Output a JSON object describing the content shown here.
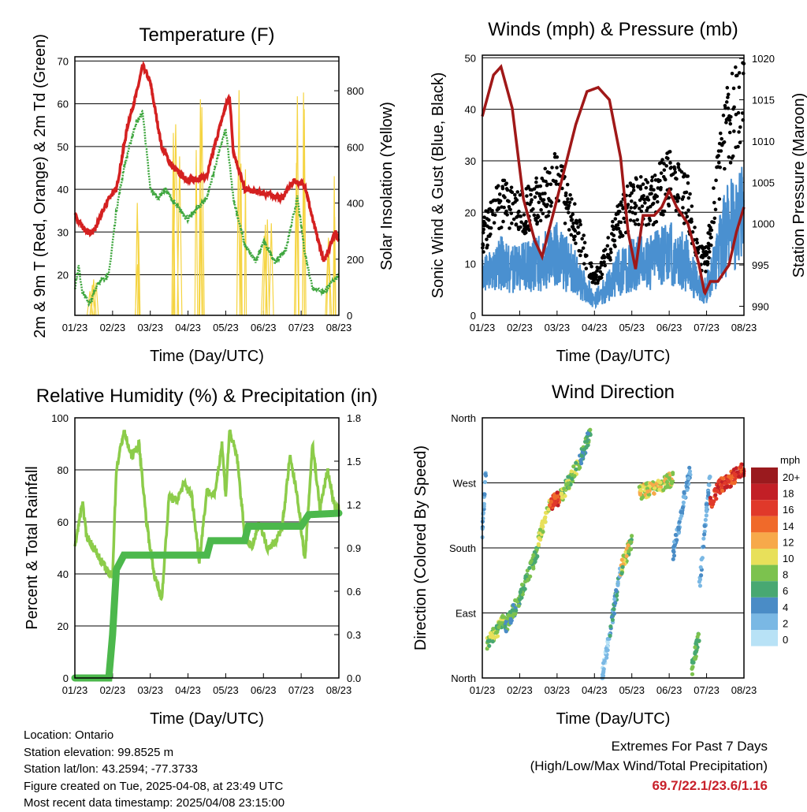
{
  "footer": {
    "location": "Location: Ontario",
    "elevation": "Station elevation: 99.8525 m",
    "latlon": "Station lat/lon: 43.2594; -77.3733",
    "created": "Figure created on Tue, 2025-04-08, at 23:49 UTC",
    "recent": "Most recent data timestamp: 2025/04/08 23:15:00"
  },
  "extremes": {
    "title": "Extremes For Past 7 Days",
    "subtitle": "(High/Low/Max Wind/Total Precipitation)",
    "values": "69.7/22.1/23.6/1.16",
    "color": "#c8202a"
  },
  "chart_data": [
    {
      "type": "line",
      "title": "Temperature (F)",
      "xlabel": "Time (Day/UTC)",
      "ylabel": "2m & 9m T (Red, Orange) & 2m Td (Green)",
      "y2label": "Solar Insolation (Yellow)",
      "xticks": [
        "01/23",
        "02/23",
        "03/23",
        "04/23",
        "05/23",
        "06/23",
        "07/23",
        "08/23"
      ],
      "xlim": [
        0,
        7
      ],
      "ylim": [
        10.5,
        71
      ],
      "yticks": [
        20,
        30,
        40,
        50,
        60,
        70
      ],
      "y2lim": [
        0,
        921
      ],
      "y2ticks": [
        0,
        200,
        400,
        600,
        800
      ],
      "series": [
        {
          "name": "2m T",
          "color": "#d42020",
          "points": [
            [
              0,
              34
            ],
            [
              0.3,
              30
            ],
            [
              0.5,
              30
            ],
            [
              0.9,
              38
            ],
            [
              1.1,
              40
            ],
            [
              1.4,
              55
            ],
            [
              1.65,
              63
            ],
            [
              1.8,
              69
            ],
            [
              2.0,
              65
            ],
            [
              2.3,
              50
            ],
            [
              2.6,
              45
            ],
            [
              3.0,
              42
            ],
            [
              3.5,
              43
            ],
            [
              3.7,
              50
            ],
            [
              3.95,
              58
            ],
            [
              4.1,
              62
            ],
            [
              4.2,
              49
            ],
            [
              4.5,
              40
            ],
            [
              5.0,
              39
            ],
            [
              5.5,
              38
            ],
            [
              5.8,
              42
            ],
            [
              6.1,
              41
            ],
            [
              6.3,
              33
            ],
            [
              6.6,
              23
            ],
            [
              6.9,
              30
            ],
            [
              7.0,
              28
            ]
          ]
        },
        {
          "name": "2m Td",
          "color": "#3ea63e",
          "points": [
            [
              0,
              17
            ],
            [
              0.1,
              22
            ],
            [
              0.2,
              16
            ],
            [
              0.4,
              13
            ],
            [
              0.6,
              18
            ],
            [
              0.9,
              20
            ],
            [
              1.1,
              35
            ],
            [
              1.3,
              45
            ],
            [
              1.6,
              55
            ],
            [
              1.8,
              58
            ],
            [
              2.0,
              40
            ],
            [
              2.2,
              38
            ],
            [
              2.4,
              40
            ],
            [
              2.7,
              36
            ],
            [
              3.0,
              33
            ],
            [
              3.5,
              38
            ],
            [
              3.8,
              48
            ],
            [
              4.0,
              54
            ],
            [
              4.2,
              38
            ],
            [
              4.5,
              27
            ],
            [
              4.8,
              23
            ],
            [
              5.0,
              28
            ],
            [
              5.3,
              23
            ],
            [
              5.6,
              26
            ],
            [
              5.9,
              38
            ],
            [
              6.1,
              25
            ],
            [
              6.3,
              17
            ],
            [
              6.6,
              16
            ],
            [
              7,
              20
            ]
          ]
        },
        {
          "name": "Solar Insolation",
          "color": "#f5d442",
          "axis": "right",
          "peaks": [
            [
              0.55,
              150
            ],
            [
              1.6,
              420
            ],
            [
              2.65,
              720
            ],
            [
              3.35,
              800
            ],
            [
              4.4,
              840
            ],
            [
              5.1,
              420
            ],
            [
              5.95,
              890
            ],
            [
              6.85,
              520
            ]
          ]
        }
      ]
    },
    {
      "type": "line",
      "title": "Winds (mph) & Pressure (mb)",
      "xlabel": "Time (Day/UTC)",
      "ylabel": "Sonic Wind & Gust (Blue, Black)",
      "y2label": "Station Pressure (Maroon)",
      "xticks": [
        "01/23",
        "02/23",
        "03/23",
        "04/23",
        "05/23",
        "06/23",
        "07/23",
        "08/23"
      ],
      "xlim": [
        0,
        7
      ],
      "ylim": [
        0,
        50.5
      ],
      "yticks": [
        0,
        10,
        20,
        30,
        40,
        50
      ],
      "y2lim": [
        988.9,
        1020.4
      ],
      "y2ticks": [
        990,
        995,
        1000,
        1005,
        1010,
        1015,
        1020
      ],
      "series": [
        {
          "name": "Sonic Wind",
          "color": "#4a90d0",
          "points": [
            [
              0,
              7
            ],
            [
              0.5,
              10
            ],
            [
              1,
              9
            ],
            [
              1.5,
              10
            ],
            [
              2,
              12
            ],
            [
              2.5,
              8
            ],
            [
              3,
              3
            ],
            [
              3.3,
              5
            ],
            [
              3.6,
              8
            ],
            [
              4,
              10
            ],
            [
              4.5,
              10
            ],
            [
              5,
              12
            ],
            [
              5.5,
              10
            ],
            [
              5.8,
              5
            ],
            [
              6.0,
              5
            ],
            [
              6.2,
              10
            ],
            [
              6.5,
              16
            ],
            [
              7,
              20
            ]
          ]
        },
        {
          "name": "Gust",
          "color": "#000000",
          "factor": 1.7
        },
        {
          "name": "Station Pressure",
          "color": "#a01818",
          "axis": "right",
          "points": [
            [
              0,
              1013
            ],
            [
              0.3,
              1018
            ],
            [
              0.5,
              1019
            ],
            [
              0.8,
              1014
            ],
            [
              1.1,
              1003
            ],
            [
              1.4,
              998
            ],
            [
              1.6,
              996
            ],
            [
              2.0,
              1003
            ],
            [
              2.5,
              1012
            ],
            [
              2.8,
              1016
            ],
            [
              3.1,
              1016.5
            ],
            [
              3.4,
              1015
            ],
            [
              3.7,
              1008
            ],
            [
              3.9,
              999
            ],
            [
              4.1,
              994.5
            ],
            [
              4.3,
              1001
            ],
            [
              4.6,
              1001
            ],
            [
              4.8,
              1002
            ],
            [
              5.0,
              1004
            ],
            [
              5.2,
              1002
            ],
            [
              5.5,
              1000
            ],
            [
              5.8,
              995
            ],
            [
              5.95,
              991.5
            ],
            [
              6.1,
              993
            ],
            [
              6.3,
              993
            ],
            [
              6.6,
              995
            ],
            [
              6.8,
              999
            ],
            [
              7,
              1002
            ]
          ]
        }
      ]
    },
    {
      "type": "line",
      "title": "Relative Humidity (%) & Precipitation (in)",
      "xlabel": "Time (Day/UTC)",
      "ylabel": "Percent & Total Rainfall",
      "xticks": [
        "01/23",
        "02/23",
        "03/23",
        "04/23",
        "05/23",
        "06/23",
        "07/23",
        "08/23"
      ],
      "xlim": [
        0,
        7
      ],
      "ylim": [
        0,
        100
      ],
      "yticks": [
        0,
        20,
        40,
        60,
        80,
        100
      ],
      "y2lim": [
        0,
        1.8
      ],
      "y2ticks": [
        "0.0",
        "0.3",
        "0.6",
        "0.9",
        "1.2",
        "1.5",
        "1.8"
      ],
      "series": [
        {
          "name": "Relative Humidity",
          "color": "#8ccc4a",
          "points": [
            [
              0,
              50
            ],
            [
              0.2,
              68
            ],
            [
              0.3,
              55
            ],
            [
              0.5,
              50
            ],
            [
              0.7,
              45
            ],
            [
              0.9,
              40
            ],
            [
              1.0,
              40
            ],
            [
              1.1,
              80
            ],
            [
              1.3,
              95
            ],
            [
              1.5,
              85
            ],
            [
              1.7,
              90
            ],
            [
              1.9,
              60
            ],
            [
              2.1,
              40
            ],
            [
              2.3,
              30
            ],
            [
              2.5,
              70
            ],
            [
              2.7,
              68
            ],
            [
              2.9,
              75
            ],
            [
              3.1,
              70
            ],
            [
              3.3,
              45
            ],
            [
              3.5,
              72
            ],
            [
              3.7,
              70
            ],
            [
              3.9,
              90
            ],
            [
              4.0,
              70
            ],
            [
              4.1,
              95
            ],
            [
              4.3,
              85
            ],
            [
              4.5,
              55
            ],
            [
              4.7,
              50
            ],
            [
              4.9,
              60
            ],
            [
              5.1,
              50
            ],
            [
              5.3,
              52
            ],
            [
              5.5,
              58
            ],
            [
              5.7,
              85
            ],
            [
              5.9,
              70
            ],
            [
              6.1,
              45
            ],
            [
              6.3,
              90
            ],
            [
              6.5,
              65
            ],
            [
              6.7,
              80
            ],
            [
              6.9,
              65
            ],
            [
              7,
              65
            ]
          ]
        },
        {
          "name": "Total Precipitation",
          "color": "#4cb84c",
          "axis": "right",
          "points": [
            [
              0,
              0
            ],
            [
              0.9,
              0
            ],
            [
              1.0,
              0.3
            ],
            [
              1.1,
              0.75
            ],
            [
              1.3,
              0.85
            ],
            [
              3.5,
              0.85
            ],
            [
              3.6,
              0.95
            ],
            [
              4.5,
              0.95
            ],
            [
              4.6,
              1.05
            ],
            [
              6.0,
              1.05
            ],
            [
              6.2,
              1.13
            ],
            [
              7,
              1.14
            ]
          ]
        }
      ]
    },
    {
      "type": "scatter",
      "title": "Wind Direction",
      "xlabel": "Time (Day/UTC)",
      "ylabel": "Direction (Colored By Speed)",
      "xticks": [
        "01/23",
        "02/23",
        "03/23",
        "04/23",
        "05/23",
        "06/23",
        "07/23",
        "08/23"
      ],
      "xlim": [
        0,
        7
      ],
      "ylim": [
        0,
        360
      ],
      "yticks": [
        "North",
        "East",
        "South",
        "West",
        "North"
      ],
      "legend": {
        "title": "mph",
        "labels": [
          "20+",
          "18",
          "16",
          "14",
          "12",
          "10",
          "8",
          "6",
          "4",
          "2",
          "0"
        ],
        "colors": [
          "#9a1a1e",
          "#c21f26",
          "#e0392a",
          "#f06a2a",
          "#f7a94a",
          "#e8e05a",
          "#7cc24e",
          "#48a872",
          "#4a8cc6",
          "#7ab8e4",
          "#b8e2f6"
        ]
      },
      "clusters": [
        [
          0,
          0.1,
          200,
          290,
          2,
          5
        ],
        [
          0.1,
          0.6,
          45,
          80,
          6,
          12
        ],
        [
          0.6,
          1.0,
          70,
          110,
          4,
          10
        ],
        [
          1.0,
          1.5,
          110,
          180,
          6,
          10
        ],
        [
          1.5,
          1.8,
          190,
          240,
          8,
          12
        ],
        [
          1.8,
          2.1,
          240,
          250,
          14,
          20
        ],
        [
          2.1,
          2.6,
          250,
          300,
          6,
          12
        ],
        [
          2.6,
          2.9,
          300,
          340,
          4,
          10
        ],
        [
          3.2,
          3.4,
          0,
          60,
          1,
          4
        ],
        [
          3.4,
          3.7,
          60,
          150,
          2,
          8
        ],
        [
          3.7,
          4.0,
          150,
          190,
          6,
          14
        ],
        [
          4.2,
          5.1,
          255,
          275,
          8,
          14
        ],
        [
          5.1,
          5.6,
          170,
          300,
          2,
          6
        ],
        [
          5.6,
          5.8,
          10,
          60,
          6,
          10
        ],
        [
          5.8,
          6.1,
          120,
          290,
          2,
          5
        ],
        [
          6.1,
          6.4,
          240,
          270,
          14,
          20
        ],
        [
          6.4,
          7.0,
          265,
          290,
          14,
          20
        ]
      ]
    }
  ]
}
